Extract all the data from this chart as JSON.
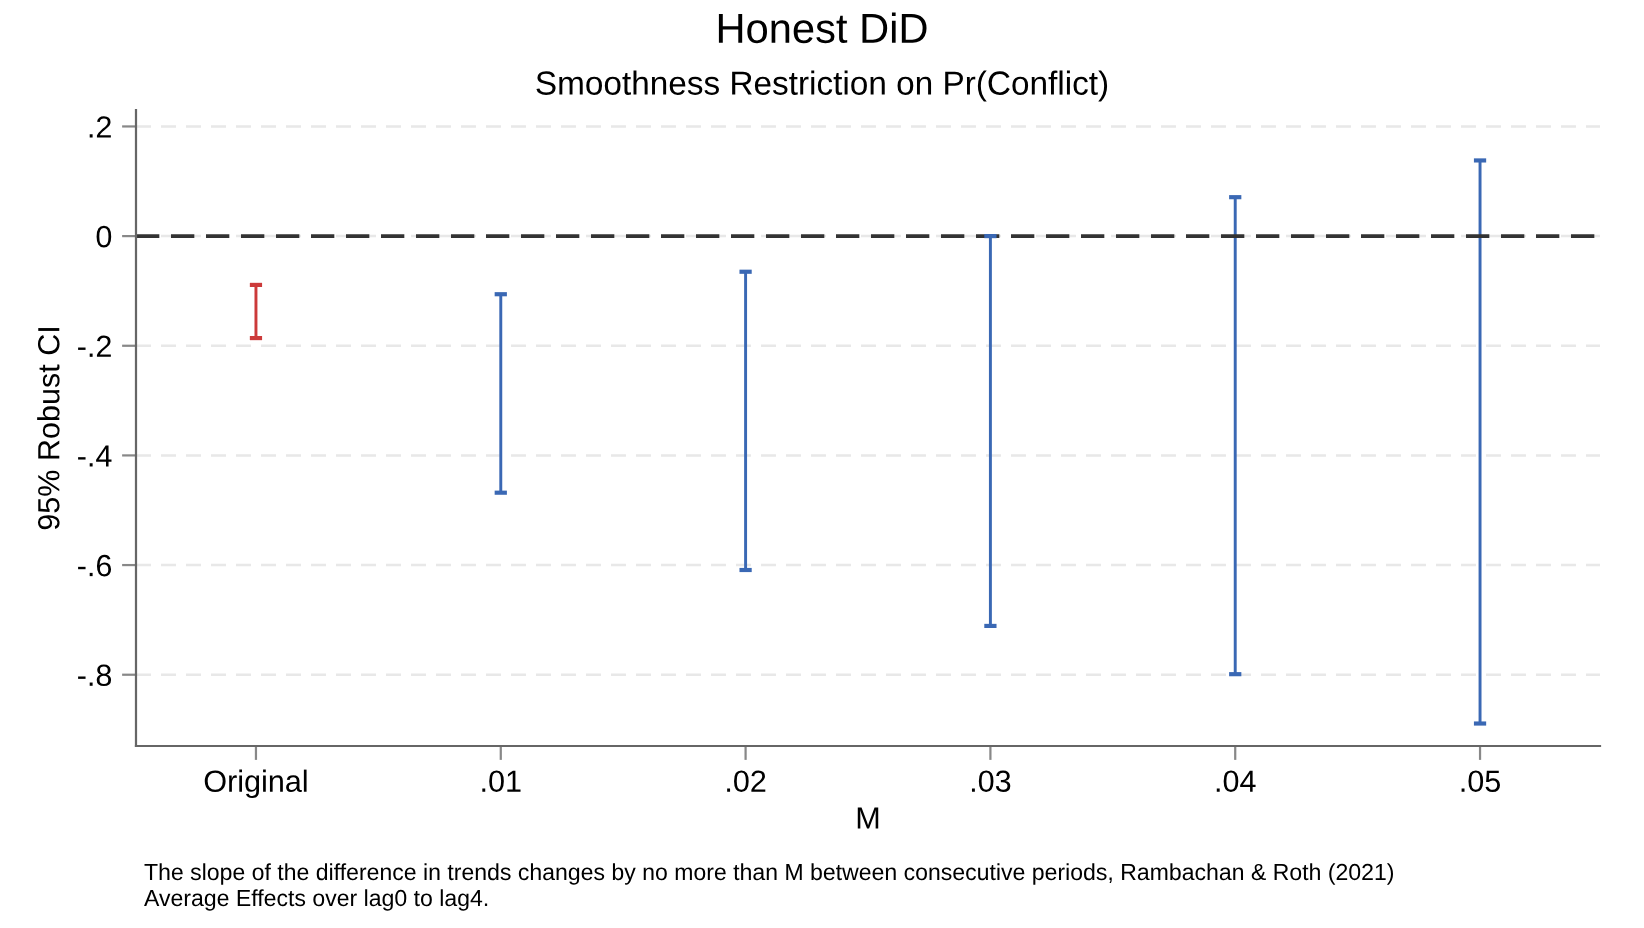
{
  "chart_data": {
    "type": "bar",
    "title": "Honest DiD",
    "subtitle": "Smoothness Restriction on Pr(Conflict)",
    "xlabel": "M",
    "ylabel": "95% Robust CI",
    "categories": [
      "Original",
      ".01",
      ".02",
      ".03",
      ".04",
      ".05"
    ],
    "base": [
      -0.186,
      -0.468,
      -0.609,
      -0.711,
      -0.799,
      -0.889
    ],
    "values": [
      0.097,
      0.362,
      0.544,
      0.711,
      0.87,
      1.027
    ],
    "colors": [
      "#cc3a3a",
      "#3a68b4",
      "#3a68b4",
      "#3a68b4",
      "#3a68b4",
      "#3a68b4"
    ],
    "ylim": [
      -0.93,
      0.23
    ],
    "yticks": [
      {
        "value": 0.2,
        "label": ".2"
      },
      0,
      {
        "value": -0.2,
        "label": "-.2"
      },
      {
        "value": -0.4,
        "label": "-.4"
      },
      {
        "value": -0.6,
        "label": "-.6"
      },
      {
        "value": -0.8,
        "label": "-.8"
      }
    ],
    "ref_lines": [
      {
        "axis": "y",
        "value": 0,
        "color": "#333333",
        "line_style": "dashed"
      }
    ],
    "grid": "y",
    "annotations": [
      "The slope of the difference in trends changes by no more than M between consecutive periods, Rambachan & Roth (2021)",
      "Average Effects over lag0 to lag4."
    ]
  }
}
